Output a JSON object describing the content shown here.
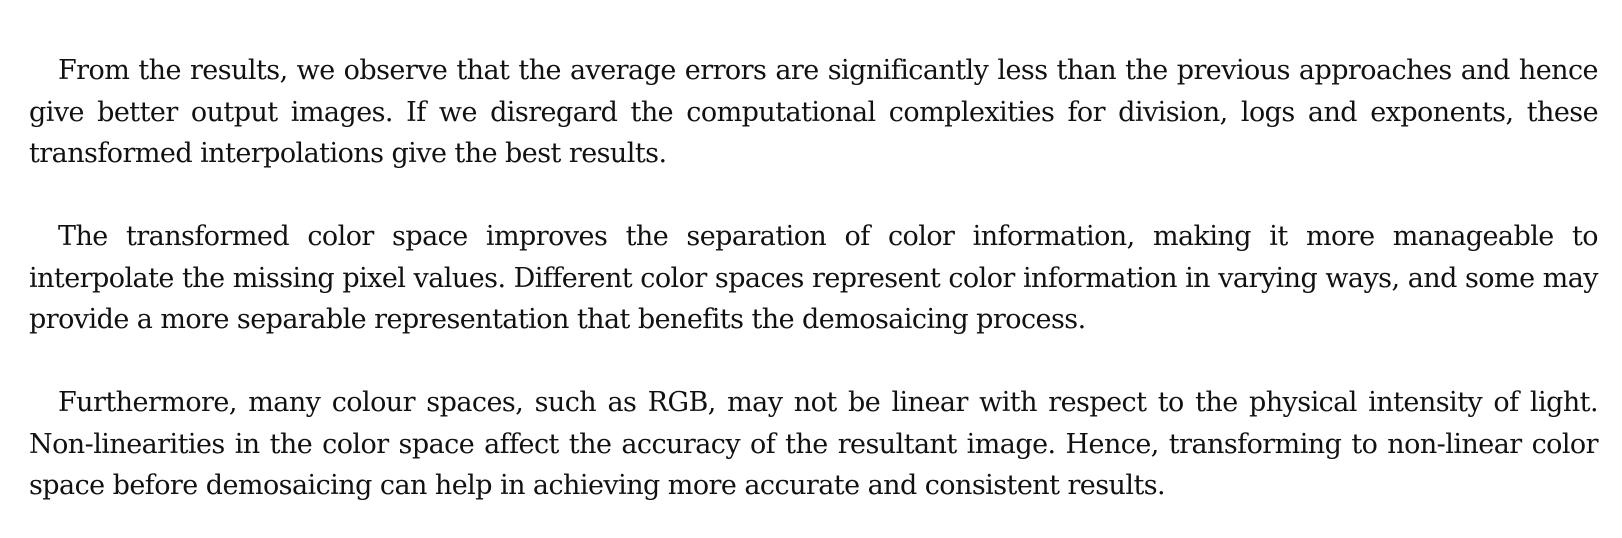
{
  "document": {
    "paragraphs": [
      "From the results, we observe that the average errors are significantly less than the previous approaches and hence give better output images. If we disregard the computational complexities for division, logs and exponents, these transformed interpolations give the best results.",
      "The transformed color space improves the separation of color information, making it more manageable to interpolate the missing pixel values. Different color spaces represent color information in varying ways, and some may provide a more separable representation that benefits the demosaicing process.",
      "Furthermore, many colour spaces, such as RGB, may not be linear with respect to the physical intensity of light. Non-linearities in the color space affect the accuracy of the resultant image. Hence, transforming to non-linear color space before demosaicing can help in achieving more accurate and consistent results."
    ]
  }
}
